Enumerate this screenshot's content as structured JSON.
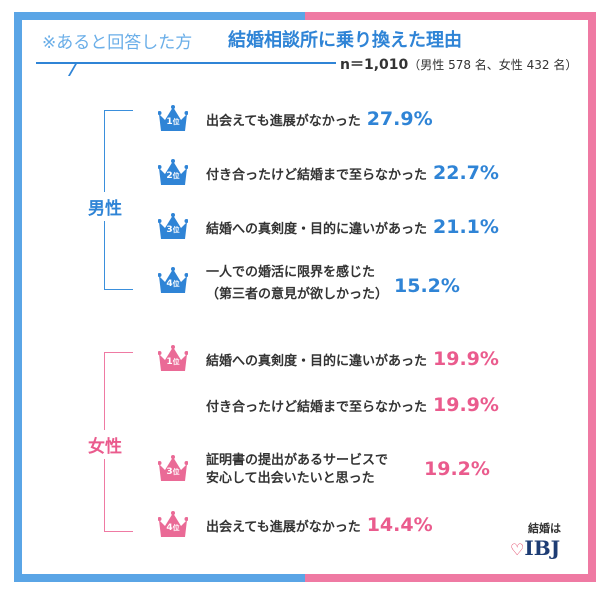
{
  "header": {
    "note": "※あると回答した方",
    "title": "結婚相談所に乗り換えた理由",
    "sample_n": "n＝1,010",
    "sample_detail": "（男性 578 名、女性 432 名）"
  },
  "male": {
    "label": "男性",
    "color": "#2f84d6",
    "items": [
      {
        "rank": "1",
        "unit": "位",
        "text": "出会えても進展がなかった",
        "pct": "27.9%"
      },
      {
        "rank": "2",
        "unit": "位",
        "text": "付き合ったけど結婚まで至らなかった",
        "pct": "22.7%"
      },
      {
        "rank": "3",
        "unit": "位",
        "text": "結婚への真剣度・目的に違いがあった",
        "pct": "21.1%"
      },
      {
        "rank": "4",
        "unit": "位",
        "text_line1": "一人での婚活に限界を感じた",
        "text_line2": "（第三者の意見が欲しかった）",
        "pct": "15.2%"
      }
    ]
  },
  "female": {
    "label": "女性",
    "color": "#ea5b8d",
    "items": [
      {
        "rank": "1",
        "unit": "位",
        "text": "結婚への真剣度・目的に違いがあった",
        "pct": "19.9%"
      },
      {
        "rank": "",
        "unit": "",
        "text": "付き合ったけど結婚まで至らなかった",
        "pct": "19.9%"
      },
      {
        "rank": "3",
        "unit": "位",
        "text_line1": "証明書の提出があるサービスで",
        "text_line2": "安心して出会いたいと思った",
        "pct": "19.2%"
      },
      {
        "rank": "4",
        "unit": "位",
        "text": "出会えても進展がなかった",
        "pct": "14.4%"
      }
    ]
  },
  "logo": {
    "small": "結婚は",
    "main": "IBJ"
  }
}
